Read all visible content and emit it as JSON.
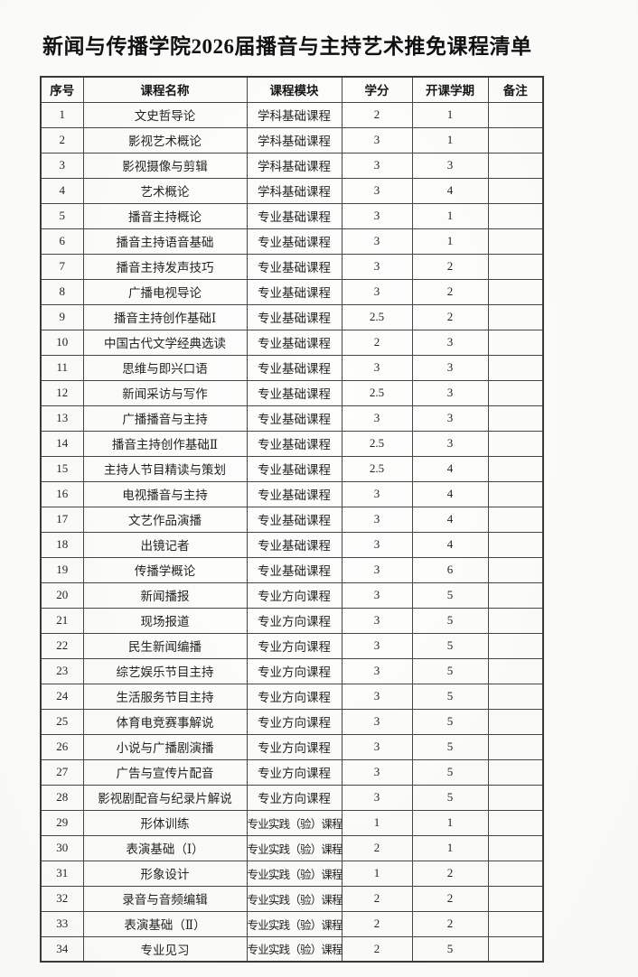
{
  "title": "新闻与传播学院2026届播音与主持艺术推免课程清单",
  "table": {
    "headers": [
      "序号",
      "课程名称",
      "课程模块",
      "学分",
      "开课学期",
      "备注"
    ],
    "rows": [
      {
        "no": "1",
        "name": "文史哲导论",
        "module": "学科基础课程",
        "credits": "2",
        "semester": "1",
        "note": ""
      },
      {
        "no": "2",
        "name": "影视艺术概论",
        "module": "学科基础课程",
        "credits": "3",
        "semester": "1",
        "note": ""
      },
      {
        "no": "3",
        "name": "影视摄像与剪辑",
        "module": "学科基础课程",
        "credits": "3",
        "semester": "3",
        "note": ""
      },
      {
        "no": "4",
        "name": "艺术概论",
        "module": "学科基础课程",
        "credits": "3",
        "semester": "4",
        "note": ""
      },
      {
        "no": "5",
        "name": "播音主持概论",
        "module": "专业基础课程",
        "credits": "3",
        "semester": "1",
        "note": ""
      },
      {
        "no": "6",
        "name": "播音主持语音基础",
        "module": "专业基础课程",
        "credits": "3",
        "semester": "1",
        "note": ""
      },
      {
        "no": "7",
        "name": "播音主持发声技巧",
        "module": "专业基础课程",
        "credits": "3",
        "semester": "2",
        "note": ""
      },
      {
        "no": "8",
        "name": "广播电视导论",
        "module": "专业基础课程",
        "credits": "3",
        "semester": "2",
        "note": ""
      },
      {
        "no": "9",
        "name": "播音主持创作基础Ⅰ",
        "module": "专业基础课程",
        "credits": "2.5",
        "semester": "2",
        "note": ""
      },
      {
        "no": "10",
        "name": "中国古代文学经典选读",
        "module": "专业基础课程",
        "credits": "2",
        "semester": "3",
        "note": ""
      },
      {
        "no": "11",
        "name": "思维与即兴口语",
        "module": "专业基础课程",
        "credits": "3",
        "semester": "3",
        "note": ""
      },
      {
        "no": "12",
        "name": "新闻采访与写作",
        "module": "专业基础课程",
        "credits": "2.5",
        "semester": "3",
        "note": ""
      },
      {
        "no": "13",
        "name": "广播播音与主持",
        "module": "专业基础课程",
        "credits": "3",
        "semester": "3",
        "note": ""
      },
      {
        "no": "14",
        "name": "播音主持创作基础Ⅱ",
        "module": "专业基础课程",
        "credits": "2.5",
        "semester": "3",
        "note": ""
      },
      {
        "no": "15",
        "name": "主持人节目精读与策划",
        "module": "专业基础课程",
        "credits": "2.5",
        "semester": "4",
        "note": ""
      },
      {
        "no": "16",
        "name": "电视播音与主持",
        "module": "专业基础课程",
        "credits": "3",
        "semester": "4",
        "note": ""
      },
      {
        "no": "17",
        "name": "文艺作品演播",
        "module": "专业基础课程",
        "credits": "3",
        "semester": "4",
        "note": ""
      },
      {
        "no": "18",
        "name": "出镜记者",
        "module": "专业基础课程",
        "credits": "3",
        "semester": "4",
        "note": ""
      },
      {
        "no": "19",
        "name": "传播学概论",
        "module": "专业基础课程",
        "credits": "3",
        "semester": "6",
        "note": ""
      },
      {
        "no": "20",
        "name": "新闻播报",
        "module": "专业方向课程",
        "credits": "3",
        "semester": "5",
        "note": ""
      },
      {
        "no": "21",
        "name": "现场报道",
        "module": "专业方向课程",
        "credits": "3",
        "semester": "5",
        "note": ""
      },
      {
        "no": "22",
        "name": "民生新闻编播",
        "module": "专业方向课程",
        "credits": "3",
        "semester": "5",
        "note": ""
      },
      {
        "no": "23",
        "name": "综艺娱乐节目主持",
        "module": "专业方向课程",
        "credits": "3",
        "semester": "5",
        "note": ""
      },
      {
        "no": "24",
        "name": "生活服务节目主持",
        "module": "专业方向课程",
        "credits": "3",
        "semester": "5",
        "note": ""
      },
      {
        "no": "25",
        "name": "体育电竞赛事解说",
        "module": "专业方向课程",
        "credits": "3",
        "semester": "5",
        "note": ""
      },
      {
        "no": "26",
        "name": "小说与广播剧演播",
        "module": "专业方向课程",
        "credits": "3",
        "semester": "5",
        "note": ""
      },
      {
        "no": "27",
        "name": "广告与宣传片配音",
        "module": "专业方向课程",
        "credits": "3",
        "semester": "5",
        "note": ""
      },
      {
        "no": "28",
        "name": "影视剧配音与纪录片解说",
        "module": "专业方向课程",
        "credits": "3",
        "semester": "5",
        "note": ""
      },
      {
        "no": "29",
        "name": "形体训练",
        "module": "专业实践（验）课程",
        "credits": "1",
        "semester": "1",
        "note": ""
      },
      {
        "no": "30",
        "name": "表演基础（Ⅰ）",
        "module": "专业实践（验）课程",
        "credits": "2",
        "semester": "1",
        "note": ""
      },
      {
        "no": "31",
        "name": "形象设计",
        "module": "专业实践（验）课程",
        "credits": "1",
        "semester": "2",
        "note": ""
      },
      {
        "no": "32",
        "name": "录音与音频编辑",
        "module": "专业实践（验）课程",
        "credits": "2",
        "semester": "2",
        "note": ""
      },
      {
        "no": "33",
        "name": "表演基础（Ⅱ）",
        "module": "专业实践（验）课程",
        "credits": "2",
        "semester": "2",
        "note": ""
      },
      {
        "no": "34",
        "name": "专业见习",
        "module": "专业实践（验）课程",
        "credits": "2",
        "semester": "5",
        "note": ""
      }
    ]
  }
}
